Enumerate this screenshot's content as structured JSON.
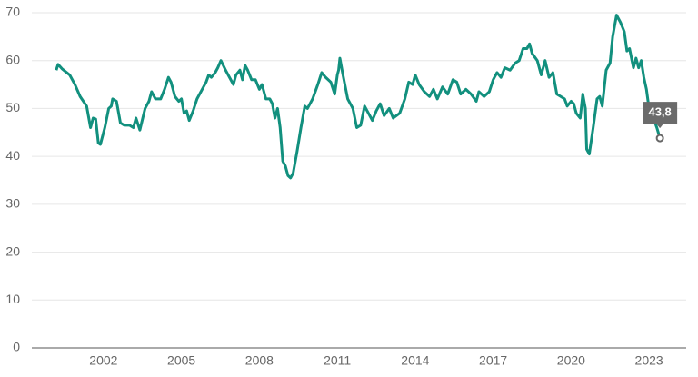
{
  "chart_data": {
    "type": "line",
    "x": [
      2000.18,
      2000.25,
      2000.4,
      2000.7,
      2000.9,
      2001.1,
      2001.35,
      2001.5,
      2001.6,
      2001.7,
      2001.8,
      2001.88,
      2002.05,
      2002.2,
      2002.3,
      2002.35,
      2002.5,
      2002.65,
      2002.8,
      2003.0,
      2003.15,
      2003.25,
      2003.4,
      2003.6,
      2003.75,
      2003.85,
      2004.0,
      2004.2,
      2004.35,
      2004.5,
      2004.6,
      2004.75,
      2004.9,
      2005.0,
      2005.1,
      2005.2,
      2005.3,
      2005.45,
      2005.6,
      2005.8,
      2005.95,
      2006.05,
      2006.15,
      2006.3,
      2006.4,
      2006.52,
      2006.7,
      2006.85,
      2007.0,
      2007.1,
      2007.25,
      2007.35,
      2007.45,
      2007.55,
      2007.7,
      2007.85,
      2008.0,
      2008.1,
      2008.25,
      2008.4,
      2008.5,
      2008.6,
      2008.7,
      2008.8,
      2008.9,
      2009.0,
      2009.1,
      2009.2,
      2009.3,
      2009.45,
      2009.6,
      2009.75,
      2009.85,
      2010.05,
      2010.25,
      2010.4,
      2010.55,
      2010.75,
      2010.9,
      2011.0,
      2011.05,
      2011.1,
      2011.2,
      2011.4,
      2011.6,
      2011.75,
      2011.9,
      2012.05,
      2012.2,
      2012.35,
      2012.5,
      2012.65,
      2012.8,
      2013.0,
      2013.15,
      2013.4,
      2013.6,
      2013.75,
      2013.9,
      2014.0,
      2014.15,
      2014.35,
      2014.55,
      2014.7,
      2014.85,
      2015.05,
      2015.25,
      2015.45,
      2015.6,
      2015.75,
      2015.95,
      2016.15,
      2016.35,
      2016.45,
      2016.65,
      2016.85,
      2017.0,
      2017.15,
      2017.3,
      2017.45,
      2017.65,
      2017.85,
      2018.0,
      2018.15,
      2018.3,
      2018.4,
      2018.5,
      2018.7,
      2018.85,
      2019.0,
      2019.15,
      2019.3,
      2019.45,
      2019.6,
      2019.75,
      2019.85,
      2020.0,
      2020.1,
      2020.2,
      2020.35,
      2020.45,
      2020.55,
      2020.6,
      2020.7,
      2020.85,
      2021.0,
      2021.1,
      2021.2,
      2021.35,
      2021.5,
      2021.6,
      2021.75,
      2021.9,
      2022.05,
      2022.15,
      2022.25,
      2022.4,
      2022.5,
      2022.6,
      2022.7,
      2022.8,
      2022.9,
      2023.0,
      2023.1,
      2023.2,
      2023.3,
      2023.42
    ],
    "values": [
      58,
      59.2,
      58.3,
      57,
      55,
      52.5,
      50.5,
      46,
      48,
      47.8,
      42.8,
      42.5,
      46,
      50,
      50.5,
      52,
      51.5,
      47,
      46.5,
      46.5,
      46,
      48,
      45.5,
      50,
      51.5,
      53.5,
      52,
      52,
      54,
      56.5,
      55.5,
      52.5,
      51.5,
      52,
      49,
      49.5,
      47.5,
      49.5,
      52,
      54,
      55.5,
      57,
      56.5,
      57.5,
      58.5,
      60,
      58,
      56.5,
      55,
      57,
      58,
      56,
      59,
      58,
      56,
      56,
      54,
      55,
      52,
      52,
      51,
      48,
      50,
      46,
      39,
      38,
      36,
      35.5,
      36.5,
      41,
      46,
      50.5,
      50,
      52,
      55,
      57.5,
      56.5,
      55.5,
      53,
      57,
      58,
      60.5,
      57.5,
      52,
      50,
      46,
      46.5,
      50.5,
      49,
      47.5,
      49.5,
      51,
      48.5,
      50,
      48,
      49,
      52,
      55.5,
      55,
      57,
      55,
      53.5,
      52.5,
      54,
      52,
      54.5,
      53,
      56,
      55.5,
      53,
      54,
      53,
      51.5,
      53.5,
      52.5,
      53.5,
      56,
      57.5,
      56.5,
      58.5,
      58,
      59.5,
      60,
      62.5,
      62.5,
      63.5,
      61.5,
      60,
      57,
      60,
      56.5,
      57.5,
      53,
      52.5,
      52,
      50.5,
      51.5,
      51,
      49,
      48,
      53,
      50,
      41.5,
      40.5,
      46,
      52,
      52.5,
      50.5,
      58,
      59.5,
      65,
      69.5,
      68,
      66,
      62,
      62.5,
      58.5,
      60.5,
      58.5,
      60,
      56.5,
      54,
      50,
      47,
      47.5,
      46,
      43.8
    ],
    "color": "#12907e",
    "annotation": "43,8",
    "xlim": [
      1999.24,
      2024.43
    ],
    "xticks": [
      2002,
      2005,
      2008,
      2011,
      2014,
      2017,
      2020,
      2023
    ],
    "ylim": [
      0,
      70
    ],
    "yticks": [
      0,
      10,
      20,
      30,
      40,
      50,
      60,
      70
    ],
    "grid": true
  }
}
